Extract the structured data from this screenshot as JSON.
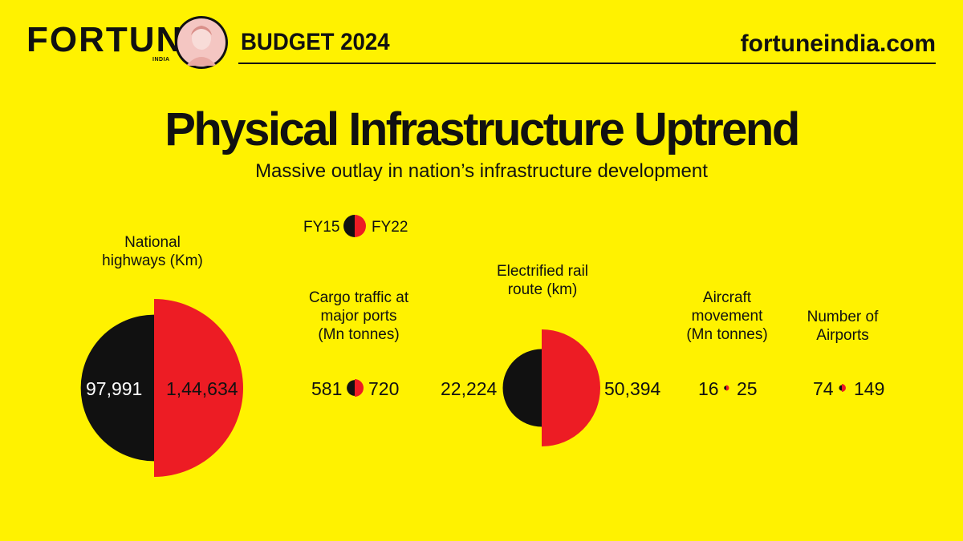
{
  "header": {
    "logo": "FORTUNE",
    "logo_sub": "INDIA",
    "budget_label": "BUDGET 2024",
    "site": "fortuneindia.com"
  },
  "title": "Physical Infrastructure Uptrend",
  "subtitle": "Massive outlay in nation’s infrastructure development",
  "legend": {
    "left": "FY15",
    "right": "FY22"
  },
  "colors": {
    "background": "#FFF200",
    "fy15": "#111111",
    "fy22": "#ED1C24"
  },
  "chart_data": {
    "type": "half-circle-comparison",
    "series": [
      {
        "name": "FY15",
        "color": "#111111"
      },
      {
        "name": "FY22",
        "color": "#ED1C24"
      }
    ],
    "metrics": [
      {
        "label": "National highways (Km)",
        "fy15": 97991,
        "fy22": 144634,
        "fy15_label": "97,991",
        "fy22_label": "1,44,634"
      },
      {
        "label": "Cargo traffic at major ports (Mn tonnes)",
        "fy15": 581,
        "fy22": 720,
        "fy15_label": "581",
        "fy22_label": "720"
      },
      {
        "label": "Electrified rail route (km)",
        "fy15": 22224,
        "fy22": 50394,
        "fy15_label": "22,224",
        "fy22_label": "50,394"
      },
      {
        "label": "Aircraft movement (Mn tonnes)",
        "fy15": 16,
        "fy22": 25,
        "fy15_label": "16",
        "fy22_label": "25"
      },
      {
        "label": "Number of Airports",
        "fy15": 74,
        "fy22": 149,
        "fy15_label": "74",
        "fy22_label": "149"
      }
    ]
  },
  "labels": {
    "highways_l1": "National",
    "highways_l2": "highways (Km)",
    "cargo_l1": "Cargo traffic at",
    "cargo_l2": "major ports",
    "cargo_l3": "(Mn tonnes)",
    "rail_l1": "Electrified rail",
    "rail_l2": "route (km)",
    "aircraft_l1": "Aircraft",
    "aircraft_l2": "movement",
    "aircraft_l3": "(Mn tonnes)",
    "airports_l1": "Number of",
    "airports_l2": "Airports"
  }
}
